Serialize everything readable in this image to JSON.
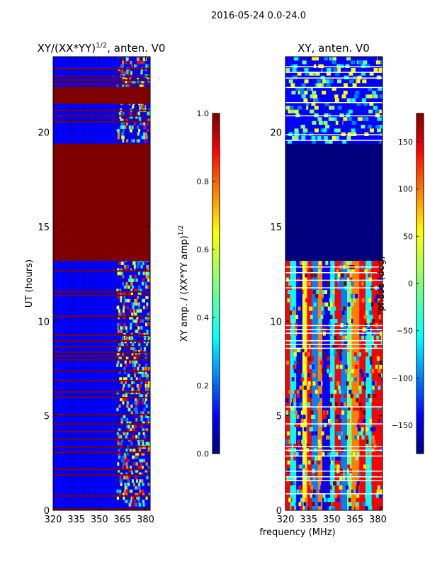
{
  "suptitle": "2016-05-24 0.0-24.0",
  "xlabel_common": "frequency (MHz)",
  "colors": {
    "jet_stops": [
      "#00007f",
      "#0000ff",
      "#007fff",
      "#00ffff",
      "#7fff7f",
      "#ffff00",
      "#ff7f00",
      "#ff0000",
      "#7f0000"
    ],
    "grid_line": "#ffffff"
  },
  "chart_data": [
    {
      "type": "heatmap",
      "title": "XY/(XX*YY)",
      "title_sup": "1/2",
      "title_suffix": ", anten. V0",
      "ylabel": "UT (hours)",
      "xlim": [
        320,
        383
      ],
      "ylim": [
        0,
        24
      ],
      "xticks": [
        320,
        335,
        350,
        365,
        380
      ],
      "yticks": [
        0,
        5,
        10,
        15,
        20
      ],
      "colorbar": {
        "label": "XY amp. / (XX*YY amp)",
        "label_sup": "1/2",
        "range": [
          0.0,
          1.0
        ],
        "ticks": [
          "0.0",
          "0.2",
          "0.4",
          "0.6",
          "0.8",
          "1.0"
        ],
        "tick_values": [
          0.0,
          0.2,
          0.4,
          0.6,
          0.8,
          1.0
        ]
      },
      "saturated_hours": [
        13.2,
        19.4
      ],
      "saturated_bands": [
        [
          21.5,
          22.4
        ]
      ],
      "flagged_hours": [
        0.1,
        0.8,
        1.9,
        2.2,
        3.1,
        3.4,
        3.8,
        4.2,
        4.6,
        5.1,
        6.0,
        6.3,
        6.9,
        7.4,
        8.0,
        8.2,
        8.4,
        8.7,
        9.0,
        9.3,
        10.3,
        11.4,
        11.6,
        12.7,
        20.6,
        20.9,
        21.2,
        22.6,
        22.8,
        23.0,
        23.4
      ]
    },
    {
      "type": "heatmap",
      "title": "XY, anten. V0",
      "xlabel": "frequency (MHz)",
      "xlim": [
        320,
        383
      ],
      "ylim": [
        0,
        24
      ],
      "xticks": [
        320,
        335,
        350,
        365,
        380
      ],
      "yticks": [
        0,
        5,
        10,
        15,
        20
      ],
      "colorbar": {
        "label": "phase (deg)",
        "range": [
          -180,
          180
        ],
        "ticks": [
          "−150",
          "−100",
          "−50",
          "0",
          "50",
          "100",
          "150"
        ],
        "tick_values": [
          -150,
          -100,
          -50,
          0,
          50,
          100,
          150
        ]
      },
      "blank_hours": [
        13.2,
        19.4
      ],
      "flagged_hours": [
        0.9,
        1.6,
        1.8,
        2.1,
        2.9,
        3.2,
        3.4,
        4.6,
        5.5,
        8.6,
        8.8,
        9.0,
        9.4,
        9.6,
        9.8,
        11.8,
        12.2,
        12.6,
        12.9,
        19.6,
        19.9,
        20.9,
        21.6,
        22.4,
        22.9,
        23.2,
        23.5
      ]
    }
  ]
}
